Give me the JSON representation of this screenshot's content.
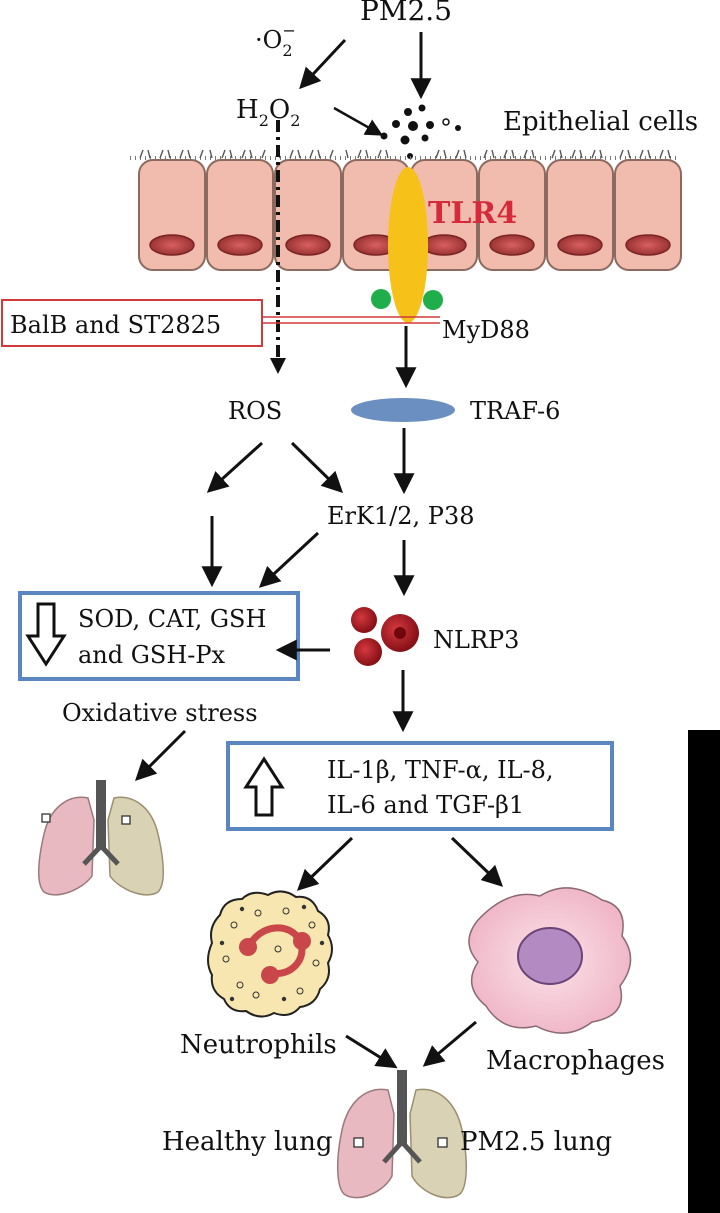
{
  "labels": {
    "pm25_top": "PM2.5",
    "superoxide_prefix": "·O",
    "superoxide_sub": "2",
    "superoxide_sup": "−",
    "h2o2_a": "H",
    "h2o2_sub1": "2",
    "h2o2_b": "O",
    "h2o2_sub2": "2",
    "epithelial_cells": "Epithelial cells",
    "tlr4": "TLR4",
    "inhibitor_box": "BalB and ST2825",
    "myd88": "MyD88",
    "ros": "ROS",
    "traf6": "TRAF-6",
    "erk": "ErK1/2, P38",
    "antioxidants_line1": "SOD, CAT, GSH",
    "antioxidants_line2": "and GSH-Px",
    "nlrp3": "NLRP3",
    "oxidative_stress": "Oxidative stress",
    "cytokines_line1": "IL-1β, TNF-α, IL-8,",
    "cytokines_line2": "IL-6 and TGF-β1",
    "neutrophils": "Neutrophils",
    "macrophages": "Macrophages",
    "healthy_lung": "Healthy lung",
    "pm25_lung": "PM2.5 lung"
  },
  "colors": {
    "tlr4_text": "#d42a3a",
    "tlr4_receptor": "#f6c21a",
    "myd88_dots": "#1fae4b",
    "traf6": "#6b8fc0",
    "nlrp3": "#b0161e",
    "box_border_blue": "#5a86c2",
    "box_border_red": "#d03a3a",
    "cell_fill": "#f1bcae",
    "nucleus": "#c04a4a",
    "side_bar": "#000000"
  },
  "icons": {
    "down_hollow_arrow": "down-hollow-arrow-icon",
    "up_hollow_arrow": "up-hollow-arrow-icon",
    "lung_illustration": "lung-icon",
    "neutrophil_illustration": "neutrophil-icon",
    "macrophage_illustration": "macrophage-icon"
  }
}
